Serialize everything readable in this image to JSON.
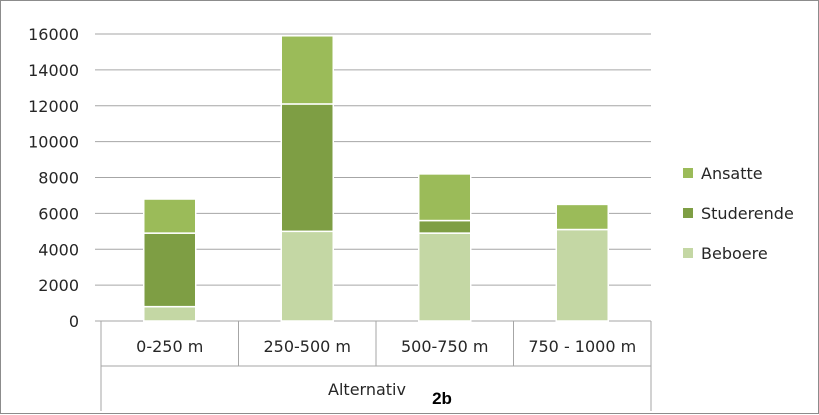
{
  "chart_data": {
    "type": "bar",
    "stacked": true,
    "categories": [
      "0-250 m",
      "250-500 m",
      "500-750 m",
      "750 - 1000 m"
    ],
    "series": [
      {
        "name": "Beboere",
        "values": [
          800,
          5000,
          4900,
          5100
        ],
        "color": "#c4d7a4"
      },
      {
        "name": "Studerende",
        "values": [
          4100,
          7100,
          700,
          0
        ],
        "color": "#7e9e44"
      },
      {
        "name": "Ansatte",
        "values": [
          1900,
          3800,
          2600,
          1400
        ],
        "color": "#9bbb59"
      }
    ],
    "ylim": [
      0,
      16000
    ],
    "yticks": [
      0,
      2000,
      4000,
      6000,
      8000,
      10000,
      12000,
      14000,
      16000
    ],
    "grid": true,
    "legend_position": "right",
    "legend_order": [
      "Ansatte",
      "Studerende",
      "Beboere"
    ],
    "xlabel": "Alternativ",
    "xlabel_suffix": "2b"
  }
}
